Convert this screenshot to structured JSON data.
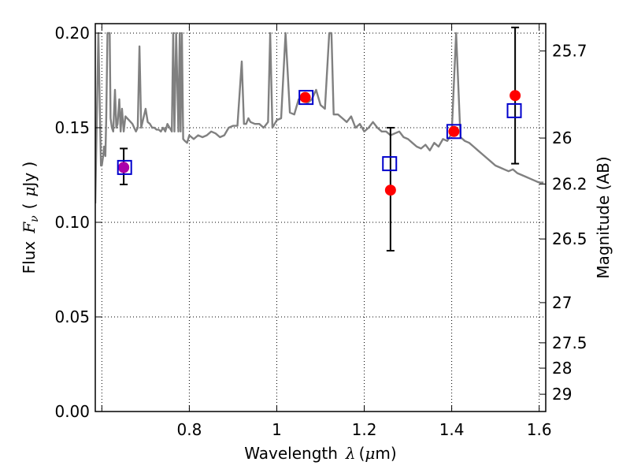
{
  "chart_data": {
    "type": "line",
    "xlabel": {
      "text": "Wavelength",
      "symbol": "λ",
      "unit_open": "(",
      "unit_mu": "μ",
      "unit_rest": "m)"
    },
    "ylabel": {
      "text": "Flux",
      "symbol": "F",
      "subscript": "ν",
      "unit_open": "(",
      "unit_mu": "μ",
      "unit_rest": "Jy )"
    },
    "y2label": "Magnitude (AB)",
    "xlim": [
      0.585,
      1.615
    ],
    "ylim": [
      0.0,
      0.205
    ],
    "x_ticks": [
      {
        "value": 0.6,
        "label": ""
      },
      {
        "value": 0.8,
        "label": "0.8"
      },
      {
        "value": 1.0,
        "label": "1"
      },
      {
        "value": 1.2,
        "label": "1.2"
      },
      {
        "value": 1.4,
        "label": "1.4"
      },
      {
        "value": 1.6,
        "label": "1.6"
      }
    ],
    "y_ticks": [
      {
        "value": 0.0,
        "label": "0.00"
      },
      {
        "value": 0.05,
        "label": "0.05"
      },
      {
        "value": 0.1,
        "label": "0.10"
      },
      {
        "value": 0.15,
        "label": "0.15"
      },
      {
        "value": 0.2,
        "label": "0.20"
      }
    ],
    "y2_ticks": [
      {
        "value": 25.7,
        "label": "25.7"
      },
      {
        "value": 26.0,
        "label": "26"
      },
      {
        "value": 26.2,
        "label": "26.2"
      },
      {
        "value": 26.5,
        "label": "26.5"
      },
      {
        "value": 27.0,
        "label": "27"
      },
      {
        "value": 27.5,
        "label": "27.5"
      },
      {
        "value": 28.0,
        "label": "28"
      },
      {
        "value": 29.0,
        "label": "29"
      }
    ],
    "grid": true,
    "series": [
      {
        "kind": "line",
        "color": "#808080",
        "x": [
          0.585,
          0.592,
          0.598,
          0.6,
          0.603,
          0.605,
          0.608,
          0.61,
          0.613,
          0.615,
          0.618,
          0.62,
          0.623,
          0.626,
          0.63,
          0.633,
          0.636,
          0.64,
          0.643,
          0.646,
          0.65,
          0.654,
          0.658,
          0.662,
          0.666,
          0.67,
          0.674,
          0.678,
          0.682,
          0.686,
          0.69,
          0.695,
          0.7,
          0.705,
          0.71,
          0.715,
          0.72,
          0.725,
          0.73,
          0.735,
          0.74,
          0.745,
          0.75,
          0.755,
          0.76,
          0.763,
          0.766,
          0.77,
          0.775,
          0.778,
          0.78,
          0.783,
          0.786,
          0.79,
          0.795,
          0.8,
          0.81,
          0.82,
          0.83,
          0.84,
          0.85,
          0.86,
          0.87,
          0.88,
          0.89,
          0.9,
          0.91,
          0.92,
          0.925,
          0.93,
          0.935,
          0.94,
          0.95,
          0.96,
          0.97,
          0.98,
          0.985,
          0.99,
          0.995,
          1.0,
          1.01,
          1.02,
          1.03,
          1.04,
          1.05,
          1.06,
          1.07,
          1.08,
          1.09,
          1.1,
          1.11,
          1.12,
          1.125,
          1.13,
          1.14,
          1.15,
          1.16,
          1.17,
          1.18,
          1.19,
          1.2,
          1.21,
          1.22,
          1.23,
          1.24,
          1.25,
          1.26,
          1.27,
          1.28,
          1.29,
          1.3,
          1.31,
          1.32,
          1.33,
          1.34,
          1.35,
          1.36,
          1.37,
          1.38,
          1.39,
          1.4,
          1.41,
          1.42,
          1.43,
          1.44,
          1.45,
          1.46,
          1.47,
          1.48,
          1.49,
          1.5,
          1.51,
          1.52,
          1.53,
          1.54,
          1.55,
          1.56,
          1.57,
          1.58,
          1.59,
          1.6,
          1.61
        ],
        "y": [
          0.11,
          0.2,
          0.13,
          0.13,
          0.135,
          0.14,
          0.135,
          0.155,
          0.2,
          0.2,
          0.2,
          0.155,
          0.15,
          0.148,
          0.17,
          0.15,
          0.152,
          0.165,
          0.148,
          0.16,
          0.148,
          0.156,
          0.155,
          0.154,
          0.153,
          0.152,
          0.15,
          0.148,
          0.15,
          0.193,
          0.15,
          0.155,
          0.16,
          0.153,
          0.152,
          0.15,
          0.15,
          0.149,
          0.149,
          0.148,
          0.15,
          0.148,
          0.152,
          0.15,
          0.148,
          0.2,
          0.148,
          0.2,
          0.148,
          0.2,
          0.148,
          0.2,
          0.144,
          0.143,
          0.142,
          0.146,
          0.144,
          0.146,
          0.145,
          0.146,
          0.148,
          0.147,
          0.145,
          0.146,
          0.15,
          0.151,
          0.151,
          0.185,
          0.152,
          0.152,
          0.155,
          0.153,
          0.152,
          0.152,
          0.15,
          0.153,
          0.2,
          0.15,
          0.152,
          0.154,
          0.155,
          0.2,
          0.158,
          0.157,
          0.165,
          0.165,
          0.163,
          0.165,
          0.17,
          0.162,
          0.16,
          0.2,
          0.2,
          0.157,
          0.157,
          0.155,
          0.153,
          0.156,
          0.15,
          0.152,
          0.148,
          0.15,
          0.153,
          0.15,
          0.148,
          0.148,
          0.146,
          0.147,
          0.148,
          0.145,
          0.144,
          0.142,
          0.14,
          0.139,
          0.141,
          0.138,
          0.142,
          0.14,
          0.144,
          0.143,
          0.147,
          0.2,
          0.145,
          0.143,
          0.142,
          0.14,
          0.138,
          0.136,
          0.134,
          0.132,
          0.13,
          0.129,
          0.128,
          0.127,
          0.128,
          0.126,
          0.125,
          0.124,
          0.123,
          0.122,
          0.121,
          0.121
        ]
      },
      {
        "kind": "errorbar",
        "color": "#000000",
        "x": [
          0.65,
          1.26,
          1.545
        ],
        "low": [
          0.12,
          0.085,
          0.131
        ],
        "high": [
          0.139,
          0.15,
          0.203
        ]
      },
      {
        "kind": "points",
        "color": "#ff0000",
        "x": [
          0.65,
          1.065,
          1.26,
          1.405,
          1.545
        ],
        "y": [
          0.129,
          0.166,
          0.117,
          0.148,
          0.167
        ]
      },
      {
        "kind": "points",
        "color": "#aa00aa",
        "x": [
          0.65
        ],
        "y": [
          0.129
        ]
      },
      {
        "kind": "squares",
        "color": "#0000cc",
        "x": [
          0.652,
          1.067,
          1.258,
          1.405,
          1.543
        ],
        "y": [
          0.129,
          0.166,
          0.131,
          0.148,
          0.159
        ]
      }
    ]
  }
}
